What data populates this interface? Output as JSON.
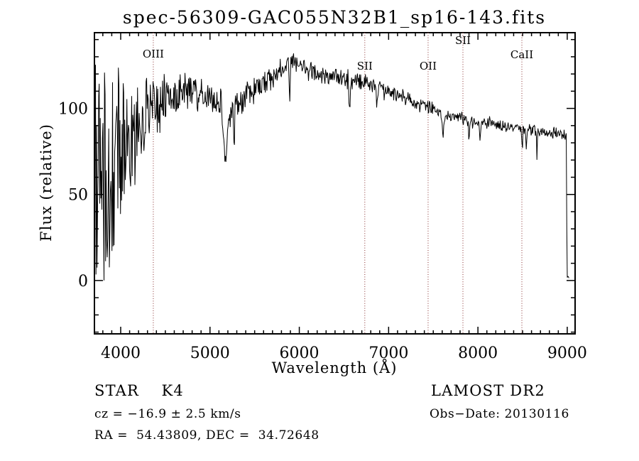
{
  "window": {
    "background": "#ffffff",
    "text_color": "#000000"
  },
  "chart_data": {
    "type": "line",
    "title": "spec-56309-GAC055N32B1_sp16-143.fits",
    "xlabel": "Wavelength (Å)",
    "ylabel": "Flux (relative)",
    "xlim": [
      3706,
      9088
    ],
    "ylim": [
      -31,
      144
    ],
    "x_ticks": [
      4000,
      5000,
      6000,
      7000,
      8000,
      9000
    ],
    "x_minor_step": 100,
    "y_ticks": [
      0,
      50,
      100
    ],
    "y_minor_step": 10,
    "grid": false,
    "legend": "none",
    "line_color": "#000000",
    "marker_line_color": "#9b5050",
    "line_markers": [
      {
        "label": "OIII",
        "wavelength": 4365,
        "label_y": 81
      },
      {
        "label": "SII",
        "wavelength": 6733,
        "label_y": 98
      },
      {
        "label": "OII",
        "wavelength": 7442,
        "label_y": 98
      },
      {
        "label": "SII",
        "wavelength": 7832,
        "label_y": 62
      },
      {
        "label": "CaII",
        "wavelength": 8492,
        "label_y": 82
      }
    ],
    "series": [
      {
        "name": "spectrum",
        "noise_seed": 20130116,
        "continuum_profile": [
          [
            3706,
            45,
            95
          ],
          [
            3760,
            50,
            88
          ],
          [
            3830,
            58,
            78
          ],
          [
            3900,
            63,
            68
          ],
          [
            3980,
            70,
            58
          ],
          [
            4060,
            77,
            48
          ],
          [
            4150,
            85,
            40
          ],
          [
            4250,
            92,
            33
          ],
          [
            4350,
            98,
            27
          ],
          [
            4450,
            103,
            21
          ],
          [
            4550,
            106,
            17
          ],
          [
            4700,
            110,
            13
          ],
          [
            4850,
            110,
            11
          ],
          [
            5000,
            106,
            11
          ],
          [
            5120,
            103,
            11
          ],
          [
            5250,
            101,
            11
          ],
          [
            5400,
            108,
            10
          ],
          [
            5550,
            114,
            9
          ],
          [
            5700,
            118,
            9
          ],
          [
            5820,
            124,
            8
          ],
          [
            5900,
            128,
            8
          ],
          [
            5980,
            126,
            7
          ],
          [
            6080,
            122,
            7
          ],
          [
            6250,
            120,
            6
          ],
          [
            6450,
            118,
            6
          ],
          [
            6650,
            116,
            6
          ],
          [
            6850,
            113,
            5
          ],
          [
            7050,
            109,
            5
          ],
          [
            7250,
            104,
            5
          ],
          [
            7430,
            101,
            5
          ],
          [
            7600,
            97,
            4
          ],
          [
            7800,
            94,
            4
          ],
          [
            8000,
            92,
            4
          ],
          [
            8250,
            90,
            4
          ],
          [
            8500,
            88,
            4
          ],
          [
            8750,
            86,
            4
          ],
          [
            8990,
            85,
            4
          ],
          [
            8997,
            2,
            1
          ],
          [
            9022,
            2,
            1
          ]
        ],
        "absorption_dips": [
          [
            4861,
            10,
            6
          ],
          [
            5175,
            36,
            22
          ],
          [
            5270,
            22,
            7
          ],
          [
            5893,
            28,
            5
          ],
          [
            6563,
            16,
            6
          ],
          [
            6870,
            9,
            7
          ],
          [
            7610,
            11,
            9
          ],
          [
            7900,
            13,
            4
          ],
          [
            8025,
            12,
            4
          ],
          [
            8498,
            11,
            4
          ],
          [
            8542,
            15,
            4
          ],
          [
            8662,
            16,
            4
          ]
        ]
      }
    ]
  },
  "footer": {
    "left": {
      "classification": "STAR    K4",
      "cz": "cz = −16.9 ± 2.5 km/s",
      "coords": "RA =  54.43809, DEC =  34.72648"
    },
    "right": {
      "survey": "LAMOST DR2",
      "obs_date": "Obs−Date: 20130116"
    }
  }
}
